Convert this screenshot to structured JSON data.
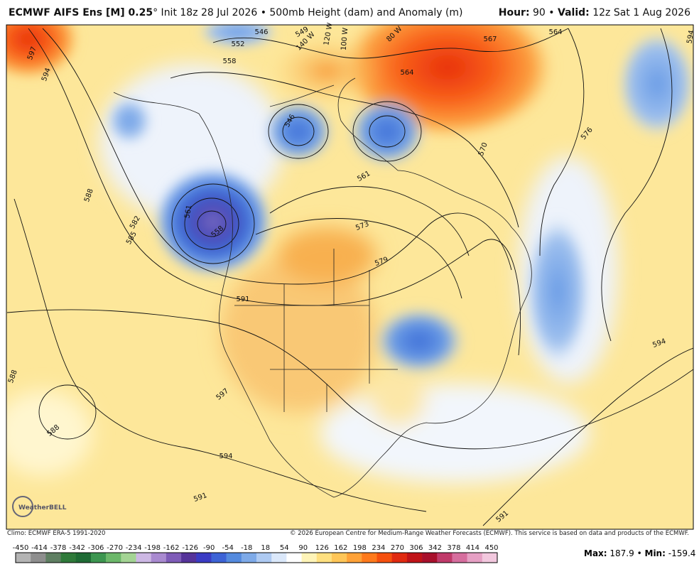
{
  "header": {
    "model": "ECMWF AIFS Ens [M] 0.25",
    "details": "° Init 18z 28 Jul 2026 • 500mb Height (dam) and Anomaly (m)",
    "hour_label": "Hour:",
    "hour": "90",
    "separator": "•",
    "valid_label": "Valid:",
    "valid": "12z Sat 1 Aug 2026"
  },
  "contour_labels": [
    "597",
    "594",
    "546",
    "552",
    "558",
    "549",
    "140 W",
    "120 W",
    "100 W",
    "80 W",
    "567",
    "564",
    "564",
    "570",
    "576",
    "588",
    "582",
    "585",
    "561",
    "558",
    "546",
    "561",
    "573",
    "579",
    "591",
    "588",
    "588",
    "597",
    "594",
    "591",
    "591",
    "594",
    "594"
  ],
  "logo": "WeatherBELL",
  "footer": {
    "climo": "Climo: ECMWF ERA-5 1991-2020",
    "copyright": "© 2026 European Centre for Medium-Range Weather Forecasts (ECMWF). This service is based on data and products of the ECMWF."
  },
  "colorbar": {
    "labels": [
      "-450",
      "-414",
      "-378",
      "-342",
      "-306",
      "-270",
      "-234",
      "-198",
      "-162",
      "-126",
      "-90",
      "-54",
      "-18",
      "18",
      "54",
      "90",
      "126",
      "162",
      "198",
      "234",
      "270",
      "306",
      "342",
      "378",
      "414",
      "450"
    ]
  },
  "stats": {
    "max_label": "Max:",
    "max": "187.9",
    "separator": "•",
    "min_label": "Min:",
    "min": "-159.4"
  }
}
